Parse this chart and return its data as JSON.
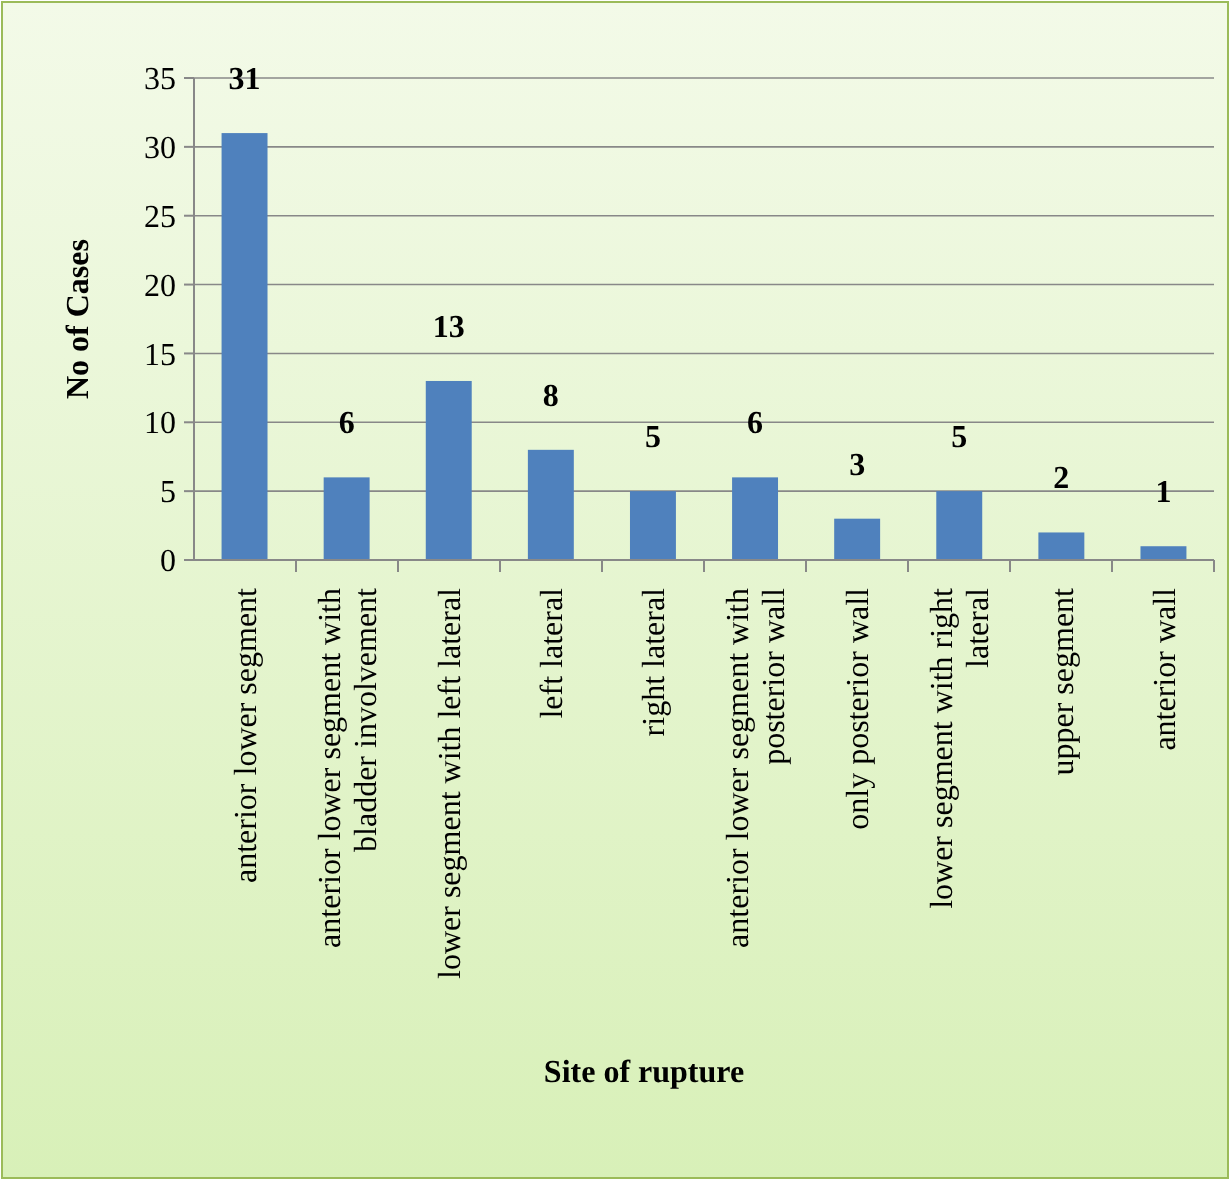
{
  "chart_data": {
    "type": "bar",
    "xlabel": "Site of rupture",
    "ylabel": "No of Cases",
    "categories": [
      "anterior lower segment",
      "anterior lower segment with bladder involvement",
      "lower segment with left lateral",
      "left lateral",
      "right lateral",
      "anterior lower segment with posterior wall",
      "only posterior wall",
      "lower segment with right lateral",
      "upper segment",
      "anterior wall"
    ],
    "values": [
      31,
      6,
      13,
      8,
      5,
      6,
      3,
      5,
      2,
      1
    ],
    "color": "#4f81bd",
    "ylim": [
      0,
      35
    ],
    "yticks": [
      0,
      5,
      10,
      15,
      20,
      25,
      30,
      35
    ],
    "grid": "y",
    "data_labels": true
  }
}
